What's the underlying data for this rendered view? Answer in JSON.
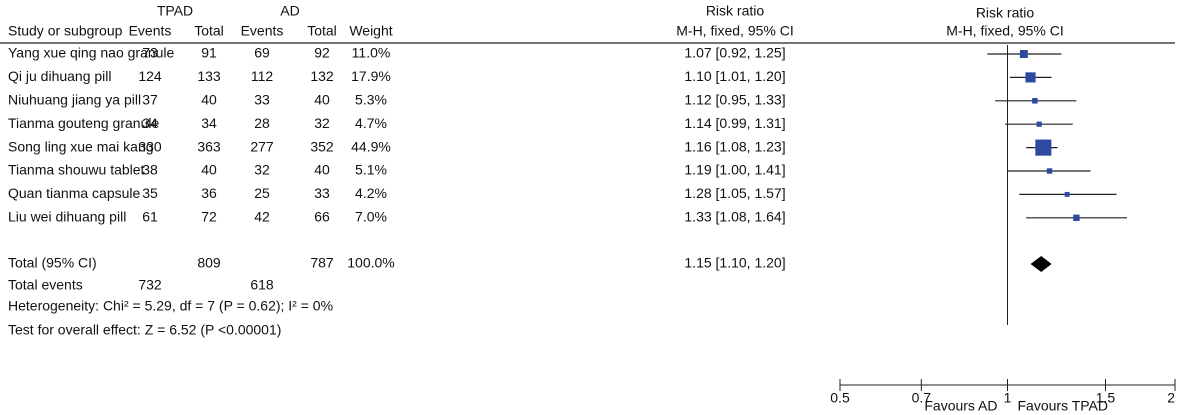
{
  "chart_data": {
    "type": "forest",
    "headers": {
      "group1": "TPAD",
      "group2": "AD",
      "study": "Study or subgroup",
      "events1": "Events",
      "total1": "Total",
      "events2": "Events",
      "total2": "Total",
      "weight": "Weight",
      "ratio_title": "Risk ratio",
      "ratio_method": "M-H, fixed, 95% CI",
      "plot_title": "Risk ratio",
      "plot_method": "M-H, fixed, 95% CI"
    },
    "studies": [
      {
        "name": "Yang xue qing nao granule",
        "events1": 73,
        "total1": 91,
        "events2": 69,
        "total2": 92,
        "weight": 11.0,
        "weight_label": "11.0%",
        "rr": 1.07,
        "lo": 0.92,
        "hi": 1.25,
        "ci_label": "1.07 [0.92, 1.25]"
      },
      {
        "name": "Qi ju dihuang pill",
        "events1": 124,
        "total1": 133,
        "events2": 112,
        "total2": 132,
        "weight": 17.9,
        "weight_label": "17.9%",
        "rr": 1.1,
        "lo": 1.01,
        "hi": 1.2,
        "ci_label": "1.10 [1.01, 1.20]"
      },
      {
        "name": "Niuhuang jiang ya pill",
        "events1": 37,
        "total1": 40,
        "events2": 33,
        "total2": 40,
        "weight": 5.3,
        "weight_label": "5.3%",
        "rr": 1.12,
        "lo": 0.95,
        "hi": 1.33,
        "ci_label": "1.12 [0.95, 1.33]"
      },
      {
        "name": "Tianma gouteng granule",
        "events1": 34,
        "total1": 34,
        "events2": 28,
        "total2": 32,
        "weight": 4.7,
        "weight_label": "4.7%",
        "rr": 1.14,
        "lo": 0.99,
        "hi": 1.31,
        "ci_label": "1.14 [0.99, 1.31]"
      },
      {
        "name": "Song ling xue mai kang",
        "events1": 330,
        "total1": 363,
        "events2": 277,
        "total2": 352,
        "weight": 44.9,
        "weight_label": "44.9%",
        "rr": 1.16,
        "lo": 1.08,
        "hi": 1.23,
        "ci_label": "1.16 [1.08, 1.23]"
      },
      {
        "name": "Tianma shouwu tablet",
        "events1": 38,
        "total1": 40,
        "events2": 32,
        "total2": 40,
        "weight": 5.1,
        "weight_label": "5.1%",
        "rr": 1.19,
        "lo": 1.0,
        "hi": 1.41,
        "ci_label": "1.19 [1.00, 1.41]"
      },
      {
        "name": "Quan tianma capsule",
        "events1": 35,
        "total1": 36,
        "events2": 25,
        "total2": 33,
        "weight": 4.2,
        "weight_label": "4.2%",
        "rr": 1.28,
        "lo": 1.05,
        "hi": 1.57,
        "ci_label": "1.28 [1.05, 1.57]"
      },
      {
        "name": "Liu wei dihuang pill",
        "events1": 61,
        "total1": 72,
        "events2": 42,
        "total2": 66,
        "weight": 7.0,
        "weight_label": "7.0%",
        "rr": 1.33,
        "lo": 1.08,
        "hi": 1.64,
        "ci_label": "1.33 [1.08, 1.64]"
      }
    ],
    "total": {
      "name": "Total (95% CI)",
      "total1": 809,
      "total2": 787,
      "weight": 100.0,
      "weight_label": "100.0%",
      "rr": 1.15,
      "lo": 1.1,
      "hi": 1.2,
      "ci_label": "1.15 [1.10, 1.20]"
    },
    "total_events": {
      "name": "Total events",
      "events1": 732,
      "events2": 618
    },
    "heterogeneity": "Heterogeneity: Chi² = 5.29, df = 7 (P = 0.62); I² = 0%",
    "overall_effect": "Test for overall effect: Z = 6.52 (P <0.00001)",
    "log_x": true,
    "xlim": [
      0.5,
      2
    ],
    "xticks": [
      0.5,
      0.7,
      1,
      1.5,
      2
    ],
    "favours_left": "Favours AD",
    "favours_right": "Favours TPAD",
    "square_color": "#2e4aa0",
    "diamond_color": "#000000"
  }
}
